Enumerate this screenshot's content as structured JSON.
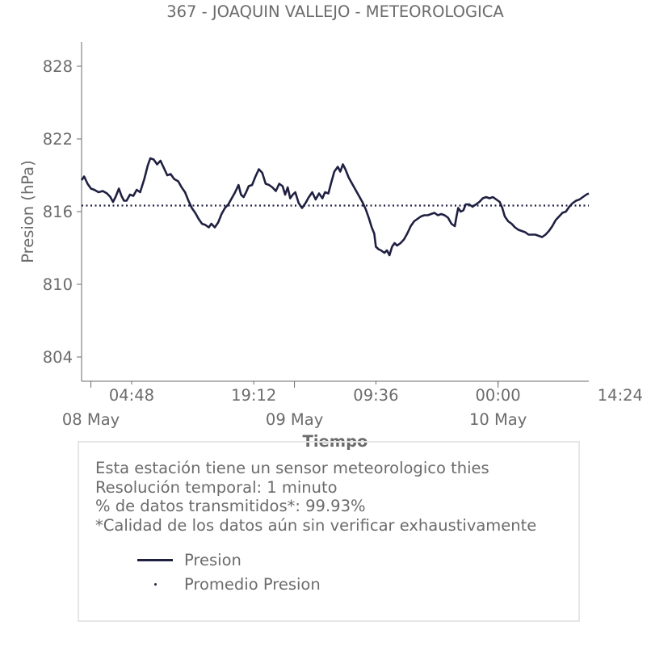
{
  "chart_data": {
    "type": "line",
    "title": "367 - JOAQUIN VALLEJO - METEOROLOGICA",
    "xlabel": "Tiempo",
    "ylabel": "Presion (hPa)",
    "ylim": [
      802,
      830
    ],
    "yticks": [
      804,
      810,
      816,
      822,
      828
    ],
    "xlim_hours": [
      -1.1,
      58.7
    ],
    "xticks_time": [
      {
        "hour": 4.8,
        "label": "04:48"
      },
      {
        "hour": 19.2,
        "label": "19:12"
      },
      {
        "hour": 33.6,
        "label": "09:36"
      },
      {
        "hour": 48.0,
        "label": "00:00"
      },
      {
        "hour": 62.4,
        "label": "14:24"
      }
    ],
    "xticks_date": [
      {
        "hour": 0,
        "label": "08 May"
      },
      {
        "hour": 24,
        "label": "09 May"
      },
      {
        "hour": 48,
        "label": "10 May"
      }
    ],
    "grid": false,
    "series": [
      {
        "name": "Presion",
        "color": "#1f2041",
        "style": "solid",
        "points": [
          [
            -1.1,
            818.6
          ],
          [
            -0.8,
            818.9
          ],
          [
            -0.4,
            818.3
          ],
          [
            0.0,
            817.9
          ],
          [
            0.4,
            817.8
          ],
          [
            0.9,
            817.6
          ],
          [
            1.4,
            817.7
          ],
          [
            1.9,
            817.5
          ],
          [
            2.3,
            817.2
          ],
          [
            2.6,
            816.8
          ],
          [
            2.9,
            817.2
          ],
          [
            3.3,
            817.9
          ],
          [
            3.6,
            817.3
          ],
          [
            3.9,
            816.9
          ],
          [
            4.2,
            816.9
          ],
          [
            4.6,
            817.4
          ],
          [
            5.0,
            817.3
          ],
          [
            5.4,
            817.8
          ],
          [
            5.8,
            817.6
          ],
          [
            6.3,
            818.7
          ],
          [
            6.7,
            819.8
          ],
          [
            7.0,
            820.4
          ],
          [
            7.4,
            820.3
          ],
          [
            7.8,
            819.9
          ],
          [
            8.2,
            820.2
          ],
          [
            8.6,
            819.6
          ],
          [
            9.0,
            819.0
          ],
          [
            9.4,
            819.1
          ],
          [
            9.8,
            818.7
          ],
          [
            10.3,
            818.5
          ],
          [
            10.7,
            818.0
          ],
          [
            11.1,
            817.6
          ],
          [
            11.5,
            816.9
          ],
          [
            11.9,
            816.3
          ],
          [
            12.3,
            815.9
          ],
          [
            12.7,
            815.4
          ],
          [
            13.1,
            815.0
          ],
          [
            13.5,
            814.9
          ],
          [
            13.9,
            814.7
          ],
          [
            14.2,
            815.0
          ],
          [
            14.6,
            814.7
          ],
          [
            15.0,
            815.1
          ],
          [
            15.4,
            815.8
          ],
          [
            15.8,
            816.3
          ],
          [
            16.2,
            816.6
          ],
          [
            16.6,
            817.1
          ],
          [
            17.0,
            817.6
          ],
          [
            17.4,
            818.2
          ],
          [
            17.7,
            817.4
          ],
          [
            18.0,
            817.2
          ],
          [
            18.3,
            817.6
          ],
          [
            18.6,
            818.1
          ],
          [
            19.0,
            818.2
          ],
          [
            19.4,
            818.9
          ],
          [
            19.8,
            819.5
          ],
          [
            20.2,
            819.2
          ],
          [
            20.6,
            818.3
          ],
          [
            21.0,
            818.2
          ],
          [
            21.4,
            818.0
          ],
          [
            21.8,
            817.7
          ],
          [
            22.2,
            818.3
          ],
          [
            22.6,
            818.1
          ],
          [
            22.9,
            817.4
          ],
          [
            23.2,
            818.0
          ],
          [
            23.5,
            817.1
          ],
          [
            23.8,
            817.4
          ],
          [
            24.1,
            817.6
          ],
          [
            24.5,
            816.7
          ],
          [
            24.9,
            816.3
          ],
          [
            25.3,
            816.7
          ],
          [
            25.7,
            817.2
          ],
          [
            26.1,
            817.6
          ],
          [
            26.5,
            817.0
          ],
          [
            26.9,
            817.5
          ],
          [
            27.3,
            817.1
          ],
          [
            27.6,
            817.6
          ],
          [
            28.0,
            817.5
          ],
          [
            28.3,
            818.3
          ],
          [
            28.7,
            819.3
          ],
          [
            29.1,
            819.7
          ],
          [
            29.4,
            819.3
          ],
          [
            29.7,
            819.9
          ],
          [
            30.0,
            819.5
          ],
          [
            30.4,
            818.8
          ],
          [
            30.8,
            818.3
          ],
          [
            31.2,
            817.8
          ],
          [
            31.6,
            817.3
          ],
          [
            32.0,
            816.8
          ],
          [
            32.4,
            816.2
          ],
          [
            32.8,
            815.4
          ],
          [
            33.1,
            814.7
          ],
          [
            33.4,
            814.2
          ],
          [
            33.6,
            813.1
          ],
          [
            33.9,
            812.9
          ],
          [
            34.2,
            812.8
          ],
          [
            34.6,
            812.6
          ],
          [
            34.9,
            812.8
          ],
          [
            35.2,
            812.4
          ],
          [
            35.5,
            813.1
          ],
          [
            35.8,
            813.4
          ],
          [
            36.1,
            813.2
          ],
          [
            36.5,
            813.4
          ],
          [
            36.9,
            813.7
          ],
          [
            37.3,
            814.2
          ],
          [
            37.7,
            814.8
          ],
          [
            38.1,
            815.2
          ],
          [
            38.5,
            815.4
          ],
          [
            38.9,
            815.6
          ],
          [
            39.3,
            815.7
          ],
          [
            39.7,
            815.7
          ],
          [
            40.1,
            815.8
          ],
          [
            40.5,
            815.9
          ],
          [
            40.9,
            815.7
          ],
          [
            41.3,
            815.8
          ],
          [
            41.7,
            815.7
          ],
          [
            42.1,
            815.5
          ],
          [
            42.5,
            815.0
          ],
          [
            42.9,
            814.8
          ],
          [
            43.1,
            815.6
          ],
          [
            43.3,
            816.3
          ],
          [
            43.6,
            816.0
          ],
          [
            43.9,
            816.1
          ],
          [
            44.2,
            816.6
          ],
          [
            44.6,
            816.6
          ],
          [
            45.0,
            816.4
          ],
          [
            45.4,
            816.6
          ],
          [
            45.8,
            816.8
          ],
          [
            46.2,
            817.1
          ],
          [
            46.6,
            817.2
          ],
          [
            47.0,
            817.1
          ],
          [
            47.4,
            817.2
          ],
          [
            47.8,
            817.0
          ],
          [
            48.2,
            816.8
          ],
          [
            48.5,
            816.3
          ],
          [
            48.8,
            815.6
          ],
          [
            49.2,
            815.2
          ],
          [
            49.6,
            815.0
          ],
          [
            50.0,
            814.7
          ],
          [
            50.4,
            814.5
          ],
          [
            50.8,
            814.4
          ],
          [
            51.2,
            814.3
          ],
          [
            51.6,
            814.1
          ],
          [
            52.0,
            814.1
          ],
          [
            52.4,
            814.1
          ],
          [
            52.8,
            814.0
          ],
          [
            53.2,
            813.9
          ],
          [
            53.6,
            814.1
          ],
          [
            54.0,
            814.4
          ],
          [
            54.4,
            814.8
          ],
          [
            54.8,
            815.3
          ],
          [
            55.2,
            815.6
          ],
          [
            55.6,
            815.9
          ],
          [
            56.0,
            816.0
          ],
          [
            56.4,
            816.4
          ],
          [
            56.8,
            816.7
          ],
          [
            57.2,
            816.9
          ],
          [
            57.6,
            817.0
          ],
          [
            58.0,
            817.2
          ],
          [
            58.4,
            817.4
          ],
          [
            58.7,
            817.5
          ]
        ]
      },
      {
        "name": "Promedio Presion",
        "color": "#1f2041",
        "style": "dotted",
        "value": 816.5
      }
    ]
  },
  "info": {
    "line1": "Esta estación tiene un sensor meteorologico thies",
    "line2": "Resolución temporal: 1 minuto",
    "line3": "% de datos transmitidos*: 99.93%",
    "line4": "*Calidad de los datos aún sin verificar exhaustivamente"
  },
  "legend": {
    "presion_label": "Presion",
    "promedio_label": "Promedio Presion"
  }
}
